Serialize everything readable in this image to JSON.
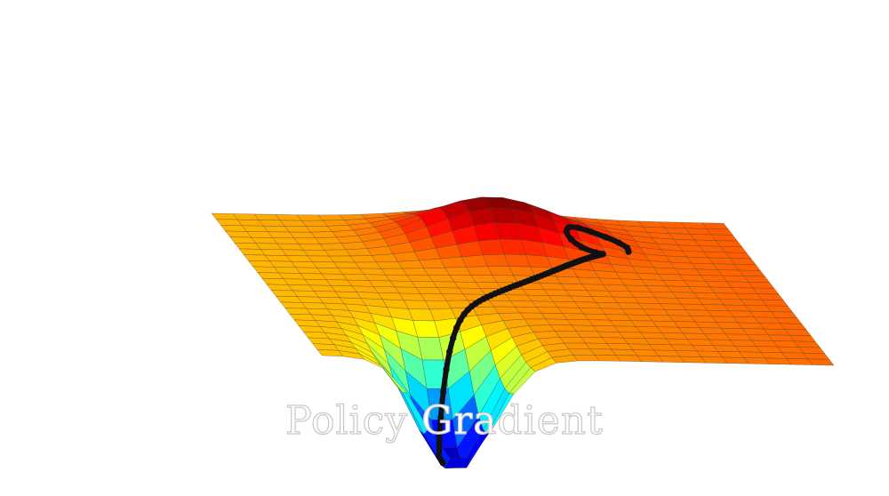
{
  "caption": {
    "text": "Policy Gradient"
  },
  "colormap": [
    "#0000aa",
    "#0000ff",
    "#0080ff",
    "#00ffff",
    "#80ff80",
    "#ffff00",
    "#ff8000",
    "#ff0000",
    "#800000"
  ],
  "path_color": "#111111",
  "grid_line_color": "#333333"
}
